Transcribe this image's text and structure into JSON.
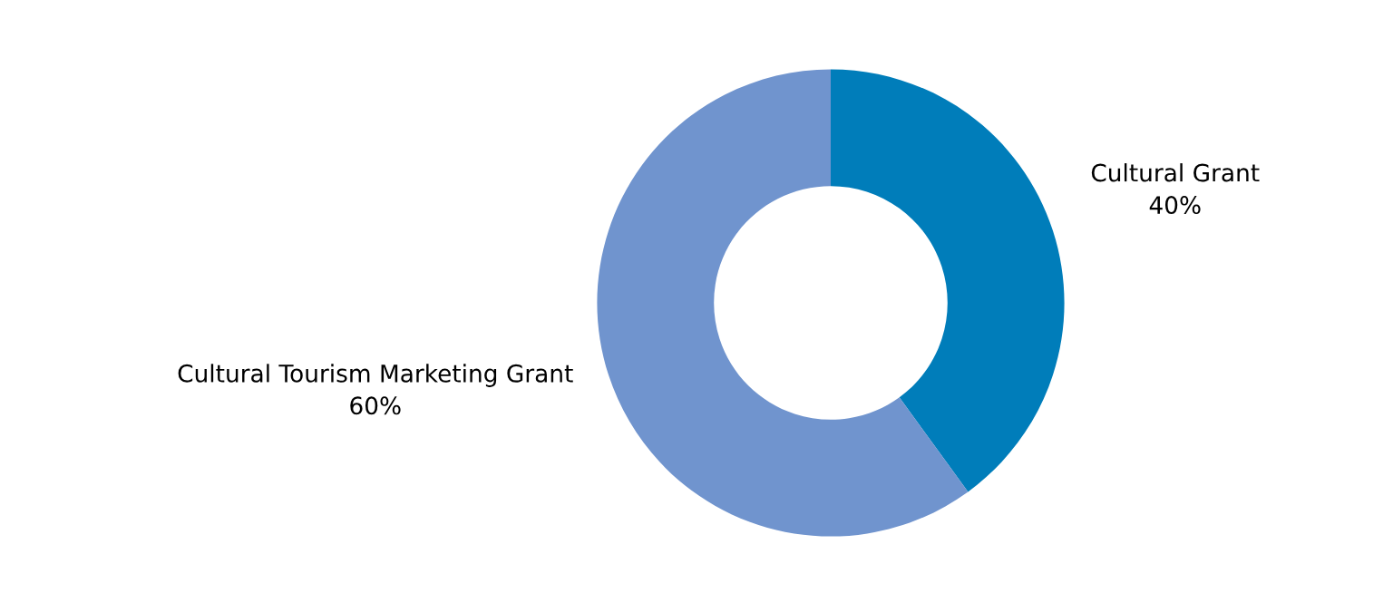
{
  "chart_data": {
    "type": "donut",
    "categories": [
      "Cultural Grant",
      "Cultural Tourism Marketing Grant"
    ],
    "values": [
      40,
      60
    ],
    "colors": [
      "#007dba",
      "#7094ce"
    ],
    "value_labels": [
      "40%",
      "60%"
    ],
    "legend": false
  }
}
